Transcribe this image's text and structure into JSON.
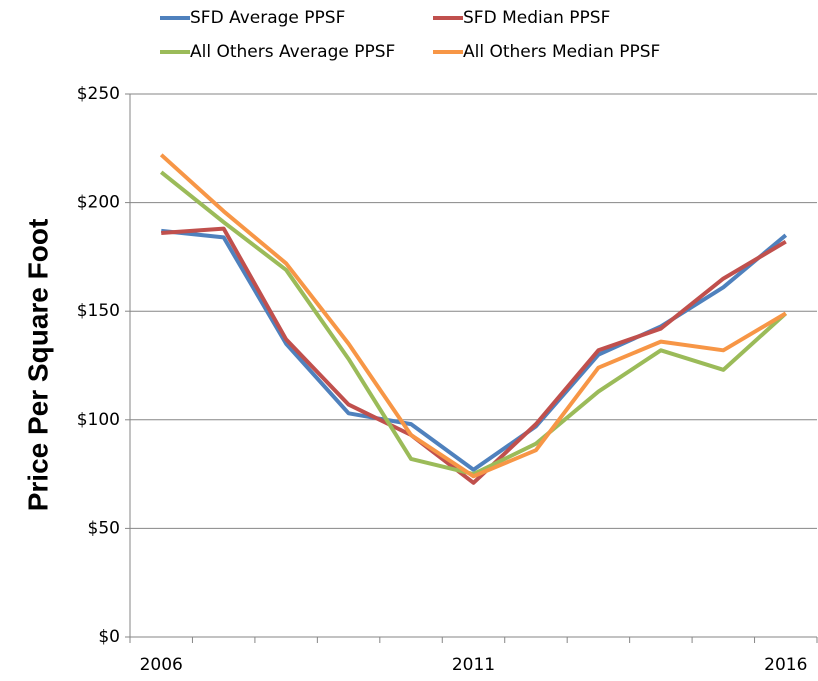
{
  "chart_data": {
    "type": "line",
    "y_label": "Price Per Square Foot",
    "categories": [
      "2006",
      null,
      null,
      null,
      null,
      "2011",
      null,
      null,
      null,
      null,
      "2016"
    ],
    "series": [
      {
        "name": "SFD Average PPSF",
        "color": "#4f81bd",
        "values": [
          187,
          184,
          135,
          103,
          98,
          77,
          97,
          130,
          143,
          161,
          185
        ]
      },
      {
        "name": "SFD Median PPSF",
        "color": "#c0504d",
        "values": [
          186,
          188,
          137,
          107,
          93,
          71,
          98,
          132,
          142,
          165,
          182
        ]
      },
      {
        "name": "All Others Average PPSF",
        "color": "#9bbb59",
        "values": [
          214,
          191,
          169,
          128,
          82,
          75,
          89,
          113,
          132,
          123,
          149
        ]
      },
      {
        "name": "All Others Median PPSF",
        "color": "#f79646",
        "values": [
          222,
          196,
          172,
          135,
          93,
          74,
          86,
          124,
          136,
          132,
          149
        ]
      }
    ],
    "ylim": [
      0,
      250
    ],
    "yticks": [
      {
        "value": 0,
        "label": "$0"
      },
      {
        "value": 50,
        "label": "$50"
      },
      {
        "value": 100,
        "label": "$100"
      },
      {
        "value": 150,
        "label": "$150"
      },
      {
        "value": 200,
        "label": "$200"
      },
      {
        "value": 250,
        "label": "$250"
      }
    ],
    "grid": true
  }
}
